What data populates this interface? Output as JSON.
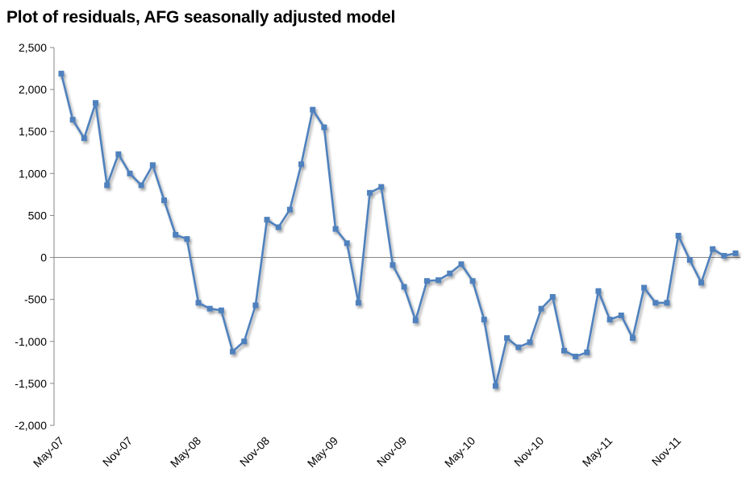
{
  "chart_data": {
    "type": "line",
    "title": "Plot of residuals, AFG seasonally adjusted model",
    "xlabel": "",
    "ylabel": "",
    "ylim": [
      -2000,
      2500
    ],
    "y_ticks": [
      "2,500",
      "2,000",
      "1,500",
      "1,000",
      "500",
      "0",
      "-500",
      "-1,000",
      "-1,500",
      "-2,000"
    ],
    "y_tick_values": [
      2500,
      2000,
      1500,
      1000,
      500,
      0,
      -500,
      -1000,
      -1500,
      -2000
    ],
    "x_tick_labels": [
      "May-07",
      "Nov-07",
      "May-08",
      "Nov-08",
      "May-09",
      "Nov-09",
      "May-10",
      "Nov-10",
      "May-11",
      "Nov-11"
    ],
    "x_tick_indices": [
      0,
      6,
      12,
      18,
      24,
      30,
      36,
      42,
      48,
      54
    ],
    "grid": false,
    "legend": "none",
    "colors": {
      "series": "#4F81BD"
    },
    "series": [
      {
        "values": [
          2190,
          1640,
          1420,
          1840,
          860,
          1230,
          1000,
          860,
          1100,
          680,
          270,
          220,
          -540,
          -610,
          -630,
          -1120,
          -1000,
          -570,
          450,
          360,
          570,
          1110,
          1760,
          1550,
          340,
          170,
          -540,
          770,
          840,
          -90,
          -350,
          -750,
          -280,
          -270,
          -190,
          -80,
          -280,
          -740,
          -1530,
          -960,
          -1070,
          -1010,
          -610,
          -470,
          -1110,
          -1180,
          -1130,
          -400,
          -740,
          -690,
          -960,
          -360,
          -540,
          -540,
          260,
          -30,
          -300,
          100,
          20,
          50
        ]
      }
    ]
  }
}
